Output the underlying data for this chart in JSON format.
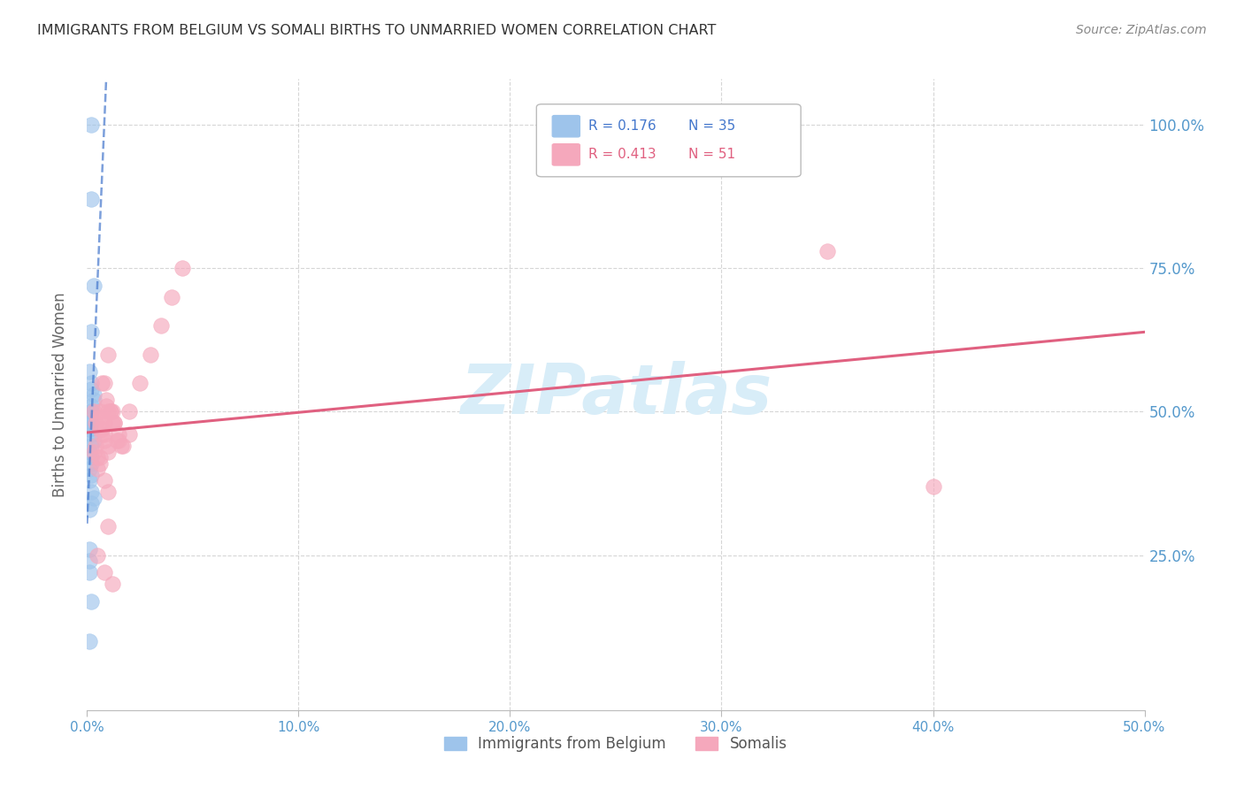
{
  "title": "IMMIGRANTS FROM BELGIUM VS SOMALI BIRTHS TO UNMARRIED WOMEN CORRELATION CHART",
  "source": "Source: ZipAtlas.com",
  "ylabel": "Births to Unmarried Women",
  "legend_r1": "0.176",
  "legend_n1": "35",
  "legend_r2": "0.413",
  "legend_n2": "51",
  "legend_label1": "Immigrants from Belgium",
  "legend_label2": "Somalis",
  "blue_color": "#9ec4eb",
  "pink_color": "#f5a8bc",
  "blue_line_color": "#4477cc",
  "pink_line_color": "#e06080",
  "title_color": "#333333",
  "axis_color": "#5599cc",
  "grid_color": "#cccccc",
  "watermark_color": "#d8edf8",
  "xlim": [
    0.0,
    0.5
  ],
  "ylim": [
    -0.02,
    1.08
  ],
  "blue_x": [
    0.002,
    0.002,
    0.003,
    0.002,
    0.001,
    0.002,
    0.002,
    0.003,
    0.002,
    0.001,
    0.001,
    0.002,
    0.003,
    0.002,
    0.001,
    0.002,
    0.001,
    0.002,
    0.001,
    0.002,
    0.003,
    0.002,
    0.001,
    0.002,
    0.001,
    0.002,
    0.001,
    0.002,
    0.003,
    0.002,
    0.001,
    0.001,
    0.001,
    0.002,
    0.001
  ],
  "blue_y": [
    1.0,
    0.87,
    0.72,
    0.64,
    0.57,
    0.55,
    0.54,
    0.52,
    0.5,
    0.48,
    0.47,
    0.46,
    0.45,
    0.44,
    0.43,
    0.41,
    0.4,
    0.39,
    0.38,
    0.36,
    0.35,
    0.34,
    0.33,
    0.5,
    0.49,
    0.48,
    0.47,
    0.42,
    0.53,
    0.51,
    0.26,
    0.24,
    0.22,
    0.17,
    0.1
  ],
  "pink_x": [
    0.003,
    0.004,
    0.006,
    0.008,
    0.01,
    0.012,
    0.008,
    0.01,
    0.006,
    0.005,
    0.007,
    0.009,
    0.011,
    0.013,
    0.007,
    0.004,
    0.006,
    0.008,
    0.01,
    0.012,
    0.014,
    0.016,
    0.008,
    0.005,
    0.007,
    0.02,
    0.015,
    0.01,
    0.005,
    0.003,
    0.006,
    0.008,
    0.01,
    0.35,
    0.007,
    0.009,
    0.011,
    0.013,
    0.015,
    0.017,
    0.02,
    0.025,
    0.03,
    0.035,
    0.04,
    0.045,
    0.005,
    0.008,
    0.012,
    0.4,
    0.01
  ],
  "pink_y": [
    0.5,
    0.48,
    0.47,
    0.46,
    0.5,
    0.48,
    0.45,
    0.43,
    0.42,
    0.4,
    0.49,
    0.51,
    0.5,
    0.48,
    0.46,
    0.44,
    0.5,
    0.55,
    0.6,
    0.5,
    0.45,
    0.44,
    0.48,
    0.49,
    0.47,
    0.46,
    0.45,
    0.44,
    0.42,
    0.43,
    0.41,
    0.38,
    0.36,
    0.78,
    0.55,
    0.52,
    0.5,
    0.48,
    0.46,
    0.44,
    0.5,
    0.55,
    0.6,
    0.65,
    0.7,
    0.75,
    0.25,
    0.22,
    0.2,
    0.37,
    0.3
  ]
}
